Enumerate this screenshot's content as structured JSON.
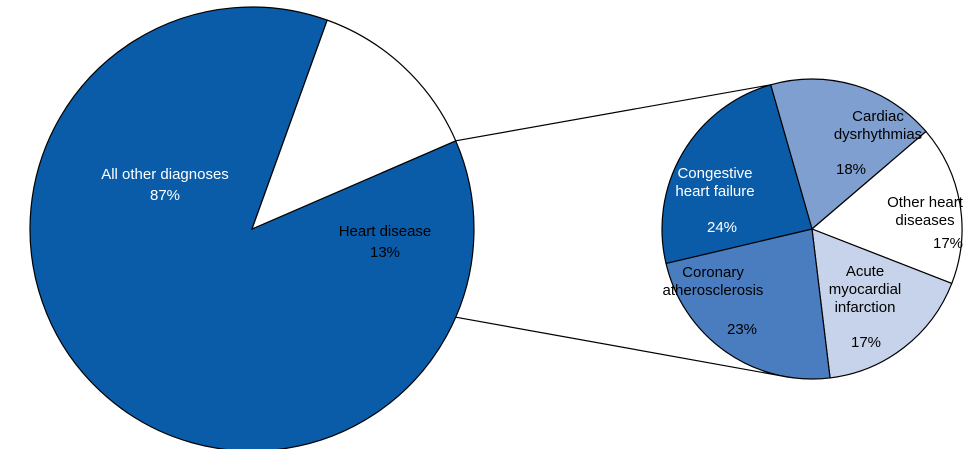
{
  "chart_data": [
    {
      "type": "pie",
      "categories": [
        "All other diagnoses",
        "Heart disease"
      ],
      "values": [
        87,
        13
      ],
      "value_labels": [
        "87%",
        "13%"
      ],
      "colors": [
        "#0a5ca8",
        "#ffffff"
      ]
    },
    {
      "type": "pie",
      "categories": [
        "Cardiac dysrhythmias",
        "Other heart diseases",
        "Acute myocardial infarction",
        "Coronary atherosclerosis",
        "Congestive heart failure"
      ],
      "values": [
        18,
        17,
        17,
        23,
        24
      ],
      "value_labels": [
        "18%",
        "17%",
        "17%",
        "23%",
        "24%"
      ],
      "colors": [
        "#7f9fd0",
        "#ffffff",
        "#c6d3ea",
        "#4a7dbf",
        "#0a5ca8"
      ]
    }
  ]
}
